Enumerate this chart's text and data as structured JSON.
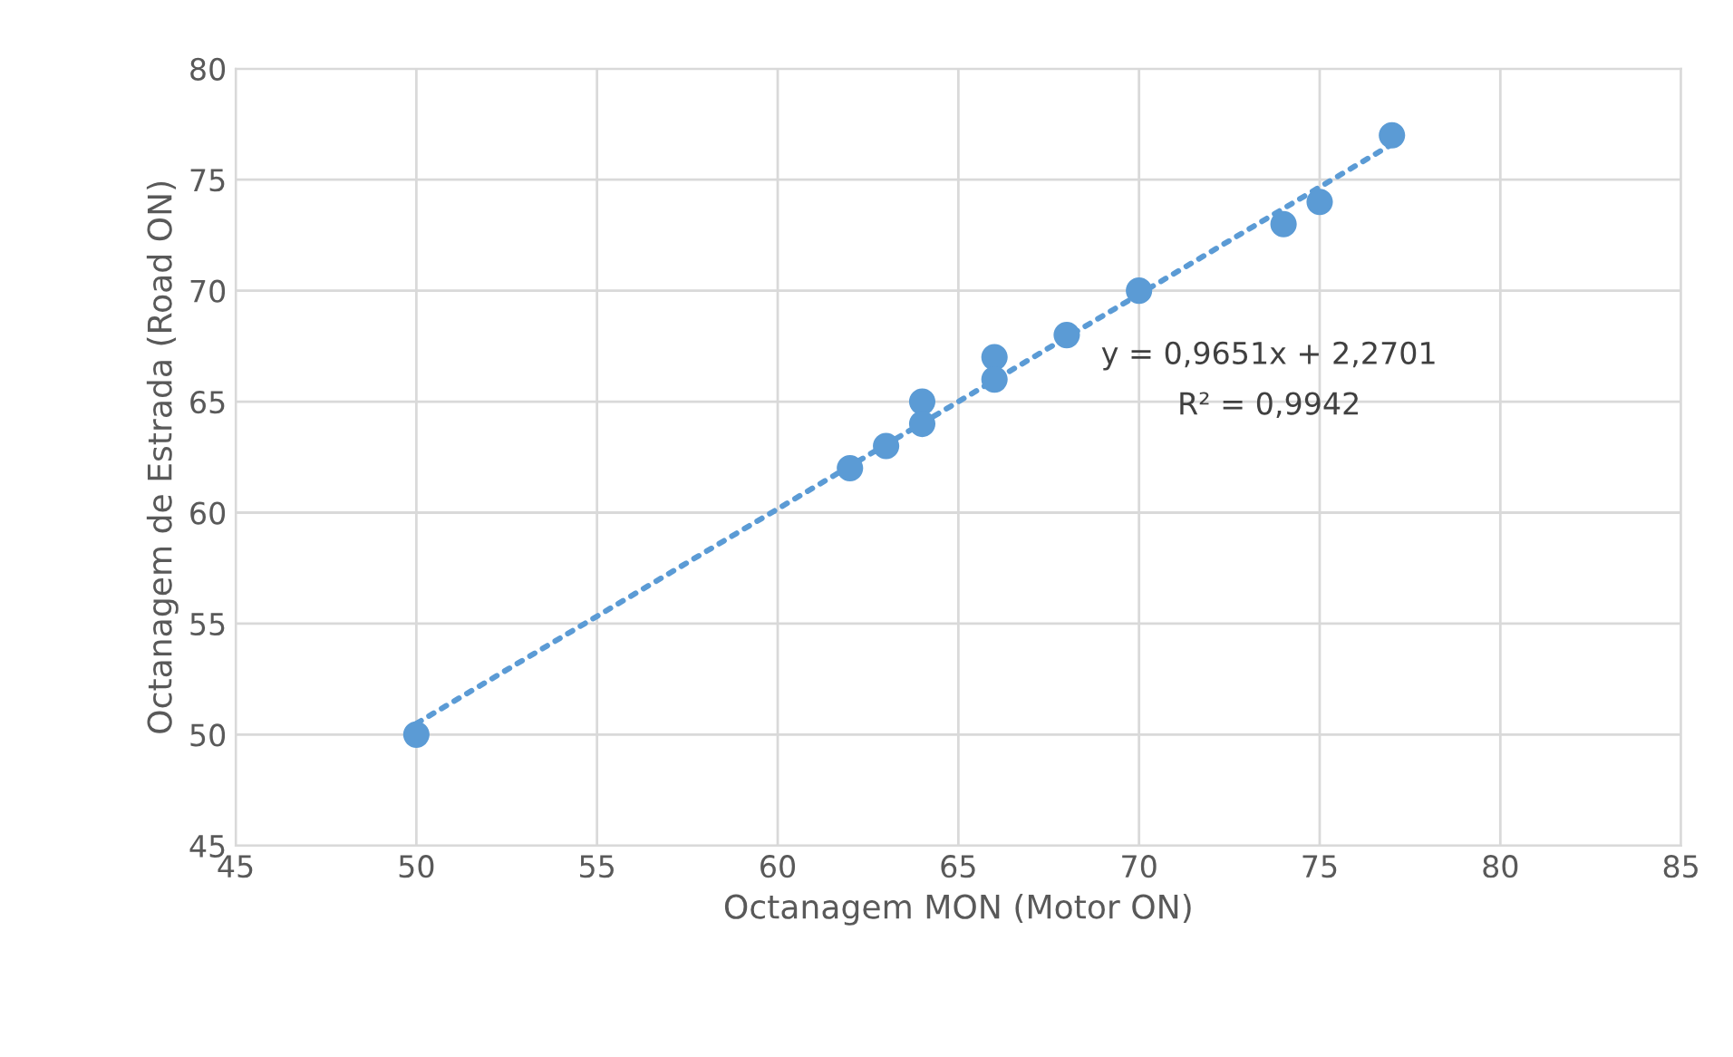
{
  "chart_data": {
    "type": "scatter",
    "xlabel": "Octanagem MON (Motor ON)",
    "ylabel": "Octanagem de Estrada (Road ON)",
    "x": [
      50,
      62,
      63,
      64,
      64,
      66,
      66,
      68,
      70,
      74,
      75,
      77
    ],
    "series": [
      {
        "color": "#5b9bd5",
        "marker": "circle",
        "values": [
          50,
          62,
          63,
          65,
          64,
          67,
          66,
          68,
          70,
          73,
          74,
          77
        ]
      },
      {
        "type": "line",
        "color": "#5b9bd5",
        "line_style": "dotted",
        "marker": "none",
        "x": [
          50,
          77
        ],
        "values": [
          50.5,
          76.6
        ]
      }
    ],
    "annotations": [
      "y = 0,9651x + 2,2701",
      "R² = 0,9942"
    ],
    "xlim": [
      45,
      85
    ],
    "xticks": [
      45,
      50,
      55,
      60,
      65,
      70,
      75,
      80,
      85
    ],
    "ylim": [
      45,
      80
    ],
    "yticks": [
      45,
      50,
      55,
      60,
      65,
      70,
      75,
      80
    ],
    "grid": true
  }
}
